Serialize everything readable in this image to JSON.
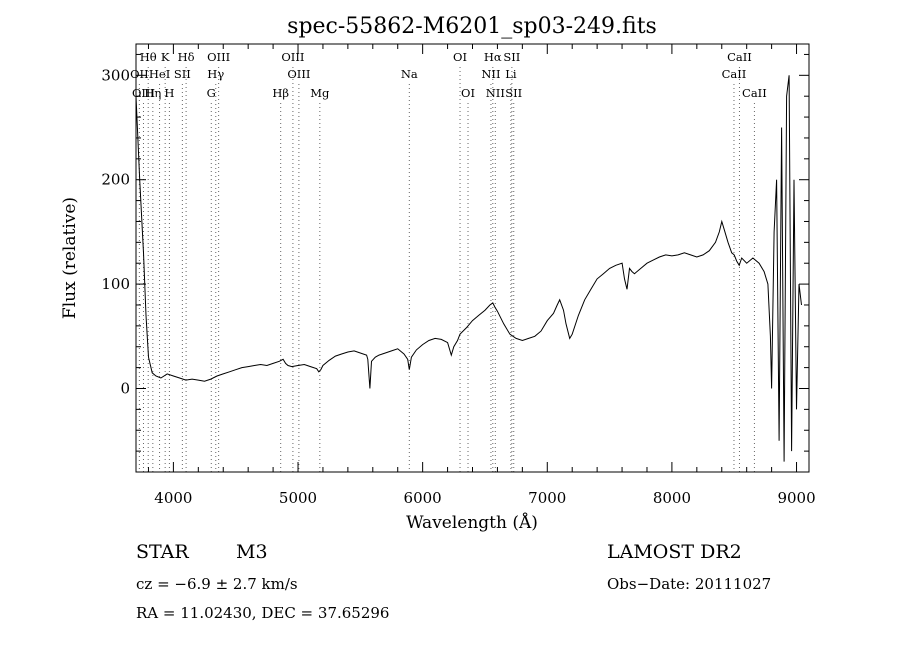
{
  "chart_data": {
    "type": "line",
    "title": "spec-55862-M6201_sp03-249.fits",
    "xlabel": "Wavelength (Å)",
    "ylabel": "Flux (relative)",
    "xlim": [
      3700,
      9100
    ],
    "ylim": [
      -80,
      330
    ],
    "xticks": [
      4000,
      5000,
      6000,
      7000,
      8000,
      9000
    ],
    "yticks": [
      0,
      100,
      200,
      300
    ],
    "grid": false,
    "series": [
      {
        "x": [
          3700,
          3730,
          3760,
          3780,
          3800,
          3830,
          3860,
          3900,
          3950,
          4000,
          4050,
          4100,
          4150,
          4200,
          4250,
          4300,
          4350,
          4400,
          4450,
          4500,
          4550,
          4600,
          4650,
          4700,
          4750,
          4800,
          4850,
          4880,
          4900,
          4920,
          4950,
          5000,
          5050,
          5100,
          5150,
          5167,
          5183,
          5200,
          5250,
          5300,
          5350,
          5400,
          5450,
          5500,
          5550,
          5560,
          5577,
          5590,
          5620,
          5650,
          5700,
          5750,
          5800,
          5850,
          5880,
          5893,
          5910,
          5950,
          6000,
          6050,
          6100,
          6150,
          6200,
          6230,
          6250,
          6280,
          6300,
          6350,
          6400,
          6450,
          6500,
          6540,
          6563,
          6580,
          6600,
          6650,
          6700,
          6750,
          6800,
          6850,
          6900,
          6950,
          7000,
          7050,
          7080,
          7100,
          7130,
          7150,
          7180,
          7200,
          7250,
          7300,
          7350,
          7400,
          7450,
          7500,
          7550,
          7600,
          7620,
          7640,
          7660,
          7680,
          7700,
          7750,
          7800,
          7850,
          7900,
          7950,
          8000,
          8050,
          8100,
          8150,
          8200,
          8250,
          8300,
          8350,
          8380,
          8400,
          8420,
          8450,
          8480,
          8500,
          8520,
          8540,
          8560,
          8600,
          8650,
          8700,
          8740,
          8770,
          8790,
          8800,
          8820,
          8840,
          8860,
          8880,
          8900,
          8920,
          8940,
          8960,
          8980,
          9000,
          9020,
          9040
        ],
        "y": [
          280,
          200,
          130,
          70,
          30,
          15,
          12,
          10,
          14,
          12,
          10,
          8,
          9,
          8,
          7,
          9,
          12,
          14,
          16,
          18,
          20,
          21,
          22,
          23,
          22,
          24,
          26,
          28,
          24,
          22,
          21,
          22,
          23,
          21,
          19,
          16,
          18,
          22,
          27,
          31,
          33,
          35,
          36,
          34,
          32,
          28,
          0,
          26,
          30,
          32,
          34,
          36,
          38,
          33,
          28,
          18,
          30,
          37,
          42,
          46,
          48,
          47,
          44,
          32,
          40,
          46,
          52,
          58,
          65,
          70,
          75,
          80,
          82,
          78,
          74,
          62,
          52,
          48,
          46,
          48,
          50,
          55,
          65,
          72,
          80,
          85,
          75,
          62,
          48,
          52,
          70,
          85,
          95,
          105,
          110,
          115,
          118,
          120,
          105,
          95,
          115,
          112,
          110,
          115,
          120,
          123,
          126,
          128,
          127,
          128,
          130,
          128,
          126,
          128,
          132,
          140,
          150,
          160,
          152,
          140,
          130,
          128,
          122,
          118,
          125,
          120,
          125,
          120,
          112,
          100,
          50,
          0,
          150,
          200,
          -50,
          250,
          -70,
          280,
          300,
          -60,
          200,
          -20,
          100,
          80
        ]
      }
    ],
    "spectral_lines": [
      {
        "label": "Hθ",
        "x": 3798,
        "row": 1
      },
      {
        "label": "K",
        "x": 3934,
        "row": 1
      },
      {
        "label": "Hδ",
        "x": 4102,
        "row": 1
      },
      {
        "label": "OIII",
        "x": 4363,
        "row": 1
      },
      {
        "label": "OIII",
        "x": 4959,
        "row": 1
      },
      {
        "label": "OI",
        "x": 6300,
        "row": 1
      },
      {
        "label": "Hα",
        "x": 6563,
        "row": 1
      },
      {
        "label": "SII",
        "x": 6716,
        "row": 1
      },
      {
        "label": "CaII",
        "x": 8542,
        "row": 1
      },
      {
        "label": "OII",
        "x": 3727,
        "row": 2
      },
      {
        "label": "HeI",
        "x": 3889,
        "row": 2
      },
      {
        "label": "SII",
        "x": 4072,
        "row": 2
      },
      {
        "label": "Hγ",
        "x": 4340,
        "row": 2
      },
      {
        "label": "OIII",
        "x": 5007,
        "row": 2
      },
      {
        "label": "Na",
        "x": 5893,
        "row": 2
      },
      {
        "label": "NII",
        "x": 6548,
        "row": 2
      },
      {
        "label": "Li",
        "x": 6708,
        "row": 2
      },
      {
        "label": "CaII",
        "x": 8498,
        "row": 2
      },
      {
        "label": "OIII",
        "x": 3760,
        "row": 3
      },
      {
        "label": "Hη",
        "x": 3835,
        "row": 3
      },
      {
        "label": "H",
        "x": 3968,
        "row": 3
      },
      {
        "label": "G",
        "x": 4304,
        "row": 3
      },
      {
        "label": "Hβ",
        "x": 4861,
        "row": 3
      },
      {
        "label": "Mg",
        "x": 5175,
        "row": 3
      },
      {
        "label": "OI",
        "x": 6364,
        "row": 3
      },
      {
        "label": "NII",
        "x": 6583,
        "row": 3
      },
      {
        "label": "SII",
        "x": 6731,
        "row": 3
      },
      {
        "label": "CaII",
        "x": 8662,
        "row": 3
      }
    ]
  },
  "info": {
    "class": "STAR",
    "subclass": "M3",
    "survey": "LAMOST DR2",
    "cz": "cz = −6.9 ± 2.7 km/s",
    "obs_date": "Obs−Date: 20111027",
    "coords": "RA =  11.02430, DEC =  37.65296"
  }
}
